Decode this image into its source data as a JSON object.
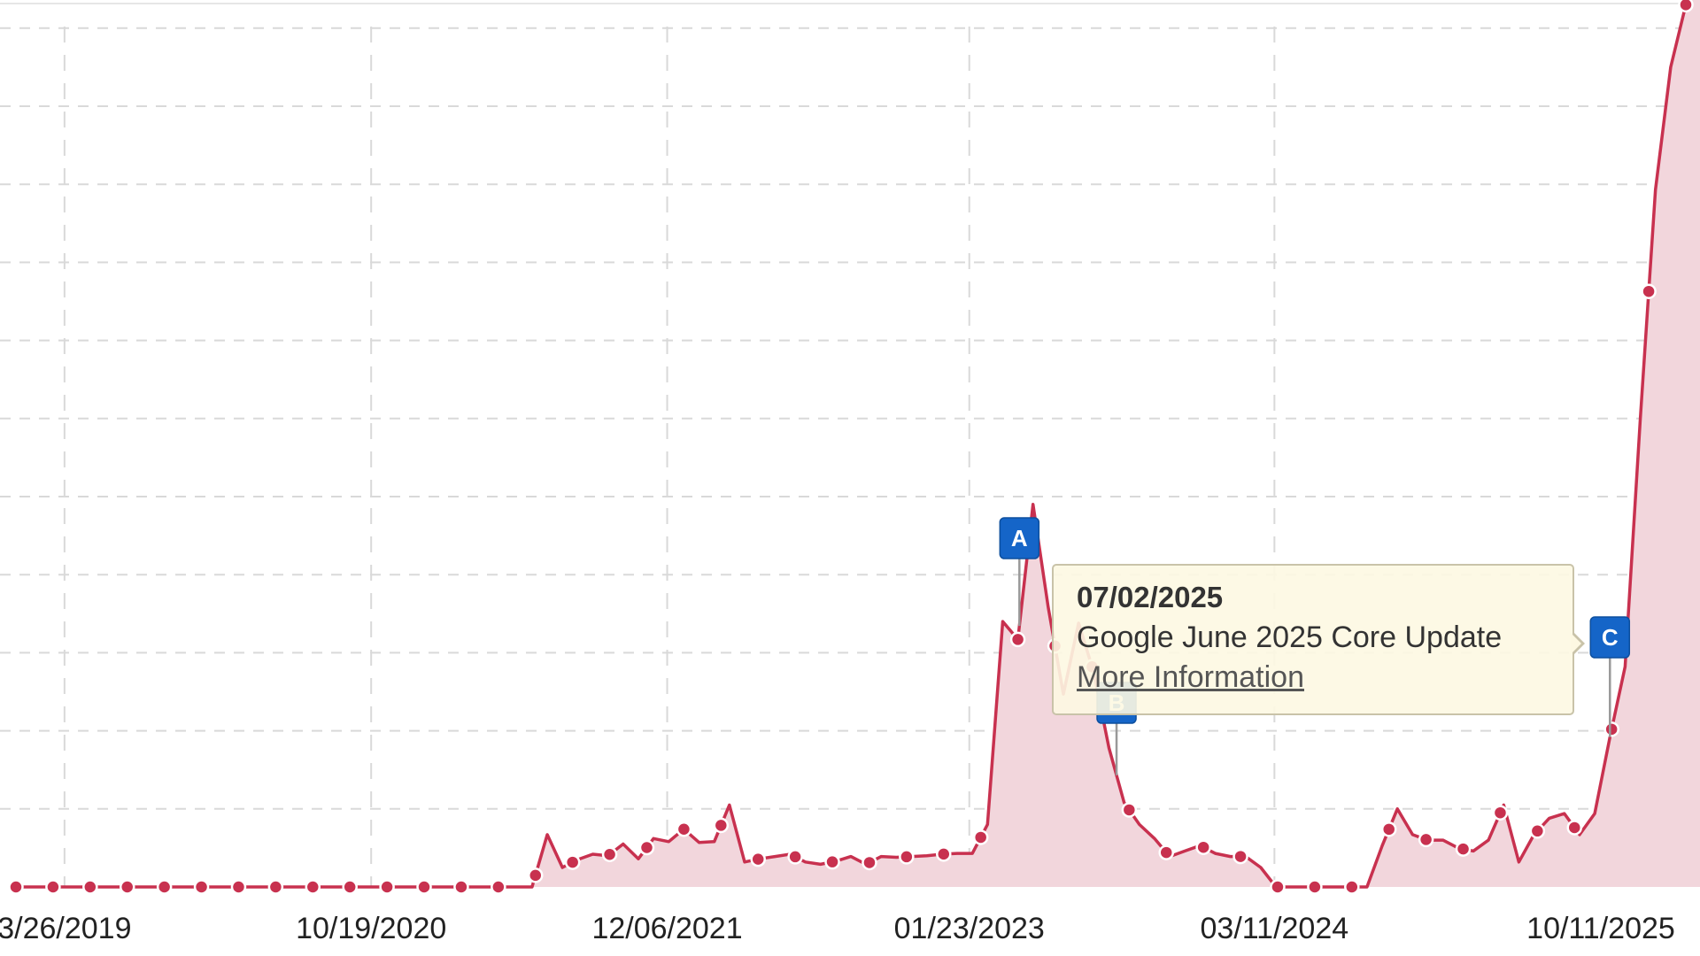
{
  "chart_data": {
    "type": "area",
    "x_axis": "sequential samples (date axis)",
    "x_ticks": [
      {
        "label": "3/26/2019",
        "index": 3.2
      },
      {
        "label": "10/19/2020",
        "index": 23.4
      },
      {
        "label": "12/06/2021",
        "index": 42.9
      },
      {
        "label": "01/23/2023",
        "index": 62.8
      },
      {
        "label": "03/11/2024",
        "index": 82.9
      },
      {
        "label": "10/11/2025",
        "index": 104.4
      }
    ],
    "y_gridlines": 11,
    "ylim": [
      0,
      11.3
    ],
    "grid": true,
    "values": [
      0,
      0,
      0,
      0,
      0,
      0,
      0,
      0,
      0,
      0,
      0,
      0,
      0,
      0,
      0,
      0,
      0,
      0,
      0,
      0,
      0,
      0,
      0,
      0,
      0,
      0,
      0,
      0,
      0,
      0,
      0,
      0,
      0,
      0,
      0,
      0.67,
      0.25,
      0.35,
      0.42,
      0.4,
      0.55,
      0.36,
      0.62,
      0.58,
      0.74,
      0.57,
      0.58,
      1.05,
      0.32,
      0.36,
      0.39,
      0.42,
      0.32,
      0.29,
      0.33,
      0.39,
      0.29,
      0.39,
      0.38,
      0.39,
      0.4,
      0.42,
      0.43,
      0.43,
      0.8,
      3.4,
      3.17,
      4.9,
      3.58,
      2.47,
      3.38,
      2.75,
      1.78,
      1.08,
      0.8,
      0.62,
      0.39,
      0.46,
      0.53,
      0.43,
      0.39,
      0.39,
      0.25,
      0,
      0,
      0,
      0,
      0,
      0,
      0,
      0.53,
      1.0,
      0.67,
      0.6,
      0.6,
      0.5,
      0.46,
      0.6,
      1.05,
      0.32,
      0.67,
      0.88,
      0.94,
      0.67,
      0.94,
      1.92,
      2.82,
      6.0,
      8.93,
      10.5,
      11.3
    ],
    "colors": {
      "line": "#c8314f",
      "fill": "#f2d6dc",
      "grid": "#d9d9d9",
      "flag": "#1565c8"
    },
    "annotations": [
      {
        "letter": "A",
        "index": 66.1
      },
      {
        "letter": "B",
        "index": 72.5
      },
      {
        "letter": "C",
        "index": 105.0
      }
    ]
  },
  "tooltip": {
    "date": "07/02/2025",
    "title": "Google June 2025 Core Update",
    "link": "More Information"
  }
}
